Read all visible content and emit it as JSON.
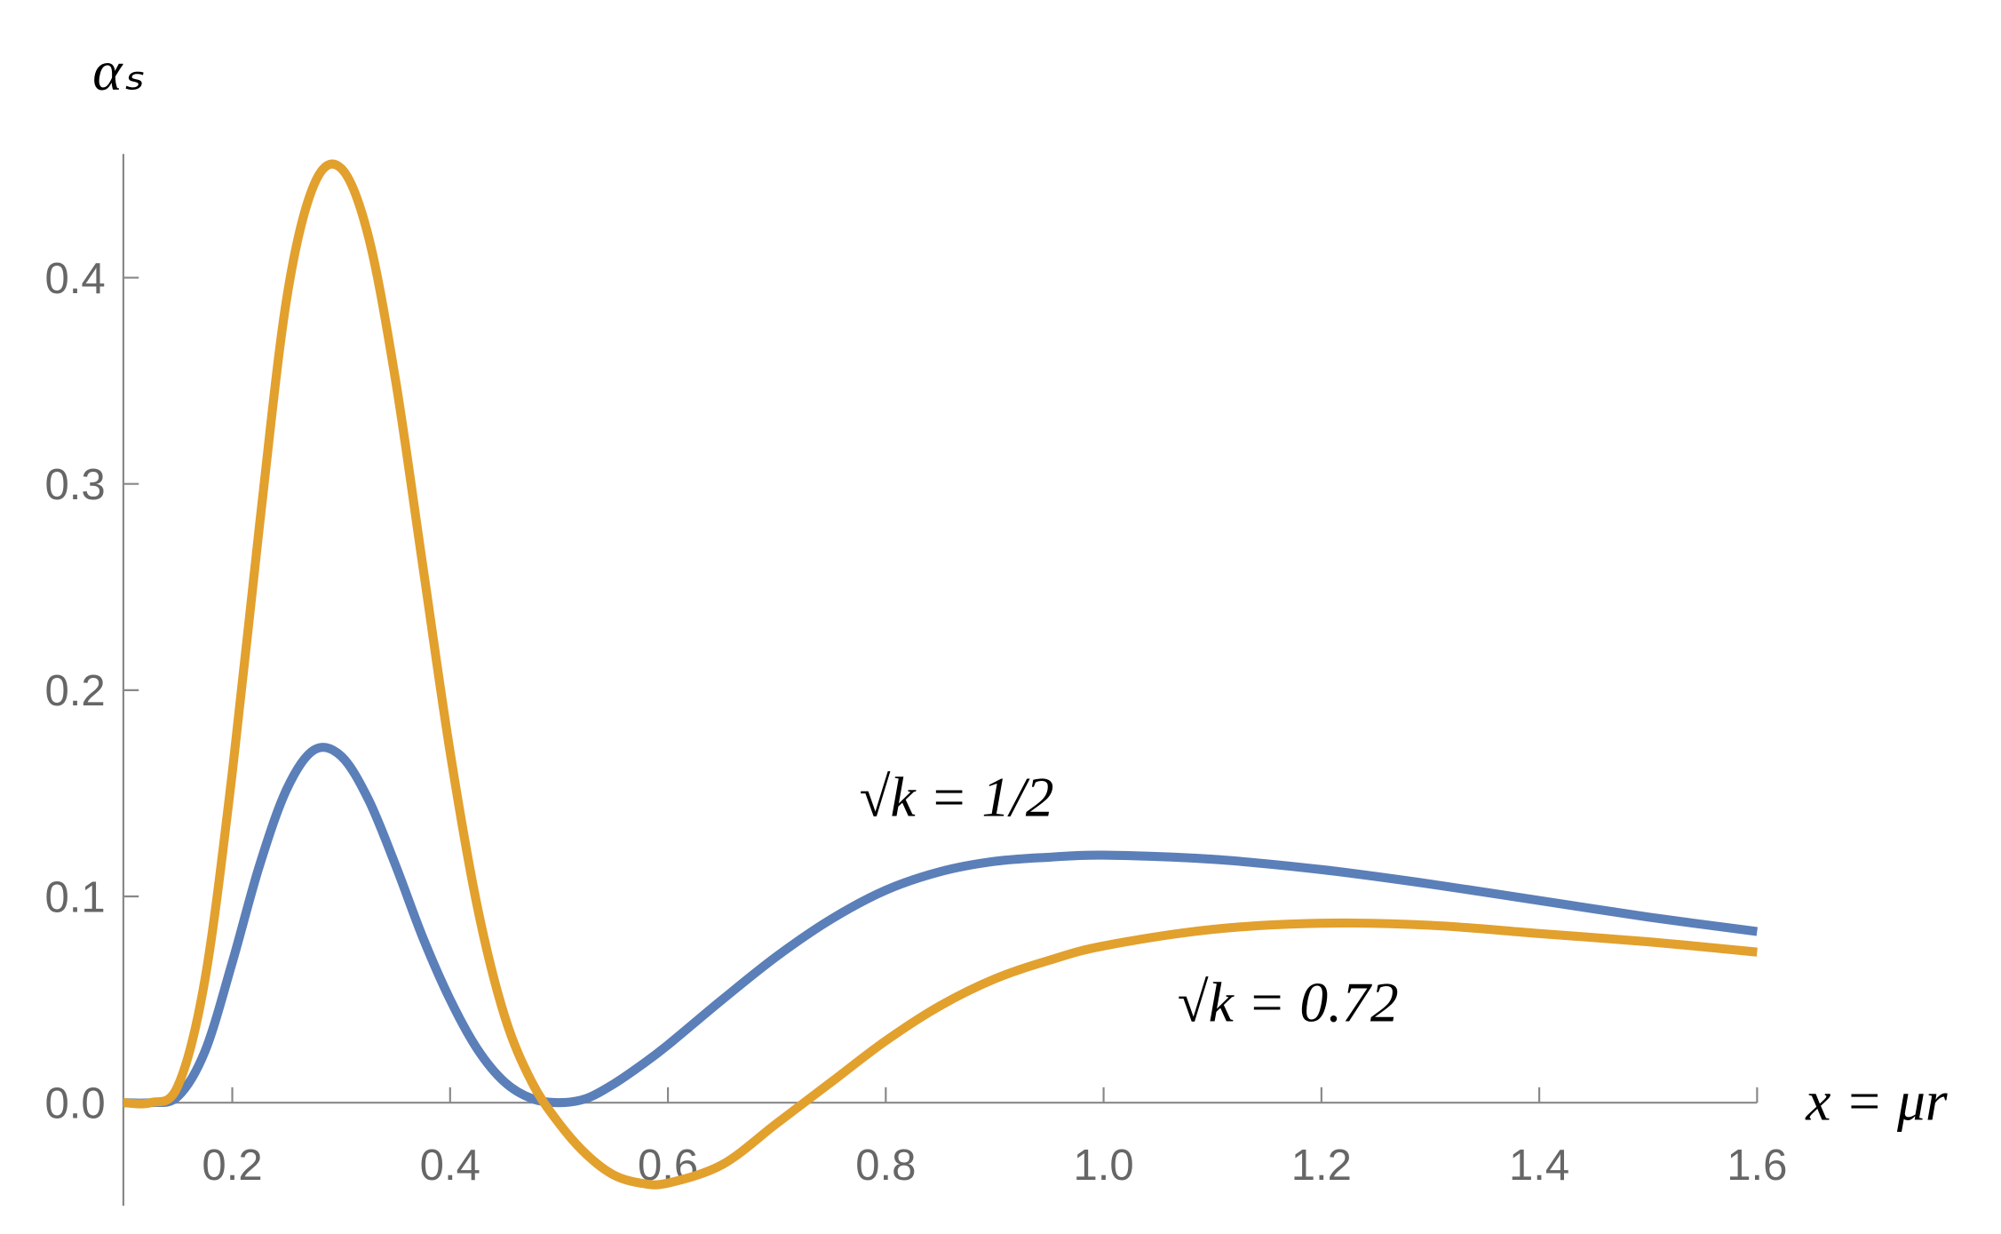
{
  "chart_data": {
    "type": "line",
    "y_label": "αₛ",
    "x_label": "x = μr",
    "annotations": [
      "√k = 1/2",
      "√k = 0.72"
    ],
    "x": [
      0.1,
      0.125,
      0.15,
      0.175,
      0.2,
      0.225,
      0.25,
      0.275,
      0.3,
      0.325,
      0.35,
      0.375,
      0.4,
      0.425,
      0.45,
      0.475,
      0.5,
      0.525,
      0.55,
      0.575,
      0.6,
      0.65,
      0.7,
      0.75,
      0.8,
      0.85,
      0.9,
      0.95,
      1.0,
      1.1,
      1.2,
      1.3,
      1.4,
      1.5,
      1.6
    ],
    "series": [
      {
        "name": "√k = 1/2",
        "color": "#5b7fb8",
        "values": [
          0,
          0,
          0.003,
          0.025,
          0.068,
          0.115,
          0.152,
          0.171,
          0.168,
          0.147,
          0.115,
          0.08,
          0.05,
          0.026,
          0.01,
          0.002,
          0.0,
          0.002,
          0.009,
          0.018,
          0.028,
          0.05,
          0.071,
          0.089,
          0.103,
          0.112,
          0.117,
          0.119,
          0.12,
          0.118,
          0.113,
          0.106,
          0.098,
          0.09,
          0.083
        ]
      },
      {
        "name": "√k = 0.72",
        "color": "#e2a02d",
        "values": [
          0,
          0,
          0.008,
          0.06,
          0.16,
          0.28,
          0.39,
          0.445,
          0.453,
          0.42,
          0.35,
          0.26,
          0.17,
          0.095,
          0.042,
          0.01,
          -0.01,
          -0.025,
          -0.035,
          -0.039,
          -0.039,
          -0.03,
          -0.01,
          0.01,
          0.03,
          0.047,
          0.06,
          0.069,
          0.076,
          0.084,
          0.087,
          0.086,
          0.082,
          0.078,
          0.073
        ]
      }
    ],
    "xlim": [
      0.1,
      1.6
    ],
    "ylim": [
      -0.05,
      0.46
    ],
    "xticks": [
      0.2,
      0.4,
      0.6,
      0.8,
      {
        "value": 1,
        "label": "1.0"
      },
      1.2,
      1.4,
      1.6
    ],
    "yticks": [
      {
        "value": 0,
        "label": "0.0"
      },
      0.1,
      0.2,
      0.3,
      0.4
    ],
    "grid": false
  }
}
